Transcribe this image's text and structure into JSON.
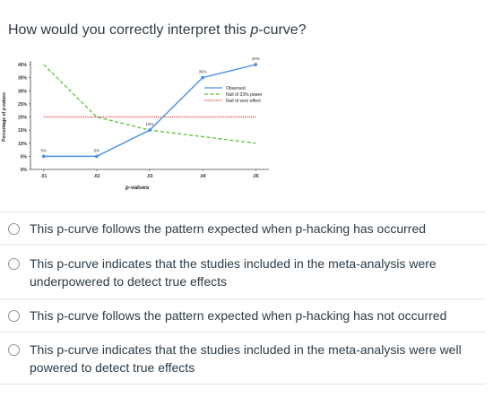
{
  "question": {
    "prefix": "How would you correctly interpret this ",
    "emph": "p",
    "suffix": "-curve?"
  },
  "chart_data": {
    "type": "line",
    "xlabel": "p-values",
    "ylabel": "Percentage of p-values",
    "x": [
      0.01,
      0.02,
      0.03,
      0.04,
      0.05
    ],
    "x_tick_labels": [
      ".01",
      ".02",
      ".03",
      ".04",
      ".05"
    ],
    "ylim": [
      0,
      40
    ],
    "y_ticks": [
      0,
      5,
      10,
      15,
      20,
      25,
      30,
      35,
      40
    ],
    "y_tick_labels": [
      "0%",
      "5%",
      "10%",
      "15%",
      "20%",
      "25%",
      "30%",
      "35%",
      "40%"
    ],
    "legend_position": "right",
    "series": [
      {
        "name": "Observed",
        "values": [
          5,
          5,
          15,
          35,
          40
        ],
        "data_labels": [
          "5%",
          "5%",
          "15%",
          "35%",
          "40%"
        ],
        "color": "#4a90e2",
        "style": "solid"
      },
      {
        "name": "Null of 33% power",
        "values": [
          40,
          20,
          15,
          12.5,
          10
        ],
        "data_labels": [
          "",
          "",
          "",
          "",
          ""
        ],
        "color": "#5ec23a",
        "style": "dashed"
      },
      {
        "name": "Null of zero effect",
        "values": [
          20,
          20,
          20,
          20,
          20
        ],
        "data_labels": [
          "",
          "",
          "",
          "",
          ""
        ],
        "color": "#e0443a",
        "style": "dotted"
      }
    ]
  },
  "options": [
    {
      "label": "This p-curve follows the pattern expected when p-hacking has occurred"
    },
    {
      "label": "This p-curve indicates that the studies included in the meta-analysis were underpowered to detect true effects"
    },
    {
      "label": "This p-curve follows the pattern expected when p-hacking has not occurred"
    },
    {
      "label": "This p-curve indicates that the studies included in the meta-analysis were well powered to detect true effects"
    }
  ]
}
